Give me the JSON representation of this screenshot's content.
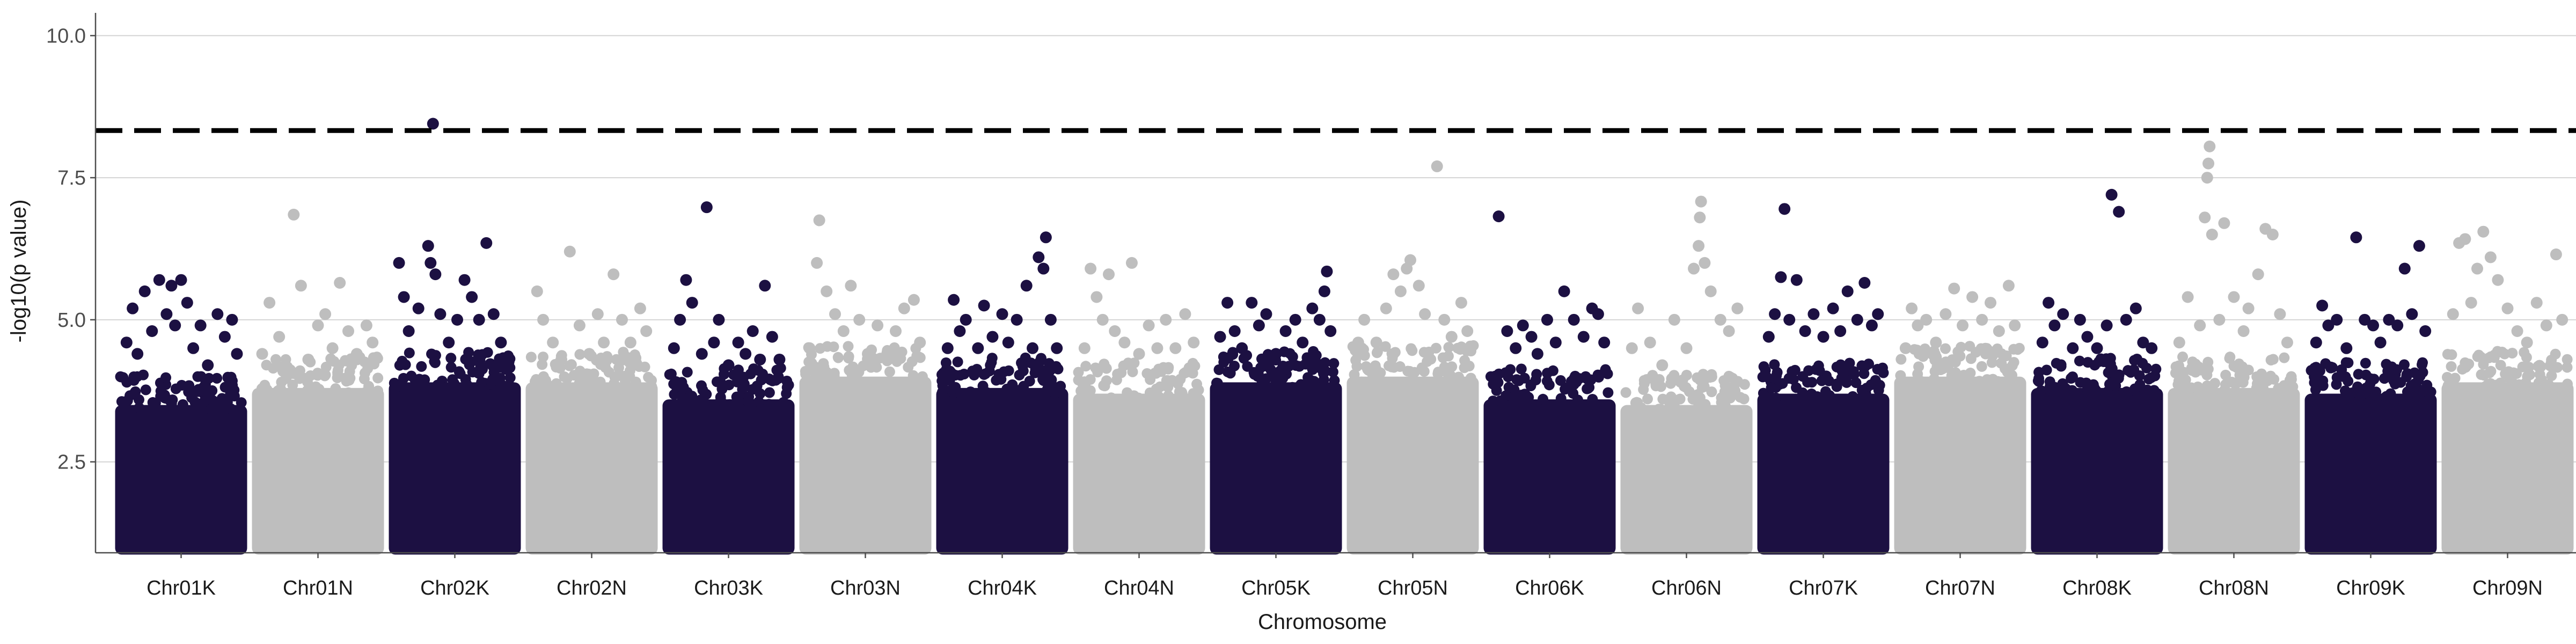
{
  "chart_data": {
    "type": "scatter",
    "subtype": "manhattan",
    "title": "",
    "xlabel": "Chromosome",
    "ylabel": "-log10(p value)",
    "ylim": [
      0.9,
      10.4
    ],
    "y_ticks": [
      2.5,
      5.0,
      7.5,
      10.0
    ],
    "y_tick_labels": [
      "2.5",
      "5.0",
      "7.5",
      "10.0"
    ],
    "threshold": 8.33,
    "threshold_style": "dashed",
    "grid": "horizontal major",
    "legend": "none",
    "colors": {
      "odd": "#1c1042",
      "even": "#bebebe",
      "threshold": "#000000",
      "grid": "#d4d4d4",
      "axis": "#4d4d4d"
    },
    "categories": [
      "Chr01K",
      "Chr01N",
      "Chr02K",
      "Chr02N",
      "Chr03K",
      "Chr03N",
      "Chr04K",
      "Chr04N",
      "Chr05K",
      "Chr05N",
      "Chr06K",
      "Chr06N",
      "Chr07K",
      "Chr07N",
      "Chr08K",
      "Chr08N",
      "Chr09K",
      "Chr09N"
    ],
    "series": [
      {
        "chromosome": "Chr01K",
        "dense_max": 3.5,
        "points": [
          [
            0.05,
            4.6
          ],
          [
            0.1,
            5.2
          ],
          [
            0.14,
            4.4
          ],
          [
            0.2,
            5.5
          ],
          [
            0.26,
            4.8
          ],
          [
            0.32,
            5.7
          ],
          [
            0.38,
            5.1
          ],
          [
            0.42,
            5.6
          ],
          [
            0.45,
            4.9
          ],
          [
            0.5,
            5.7
          ],
          [
            0.55,
            5.3
          ],
          [
            0.6,
            4.5
          ],
          [
            0.66,
            4.9
          ],
          [
            0.72,
            4.2
          ],
          [
            0.8,
            5.1
          ],
          [
            0.86,
            4.7
          ],
          [
            0.92,
            5.0
          ],
          [
            0.96,
            4.4
          ]
        ]
      },
      {
        "chromosome": "Chr01N",
        "dense_max": 3.8,
        "points": [
          [
            0.04,
            4.4
          ],
          [
            0.1,
            5.3
          ],
          [
            0.18,
            4.7
          ],
          [
            0.24,
            4.1
          ],
          [
            0.3,
            6.85
          ],
          [
            0.36,
            5.6
          ],
          [
            0.42,
            4.3
          ],
          [
            0.5,
            4.9
          ],
          [
            0.56,
            5.1
          ],
          [
            0.62,
            4.5
          ],
          [
            0.68,
            5.65
          ],
          [
            0.75,
            4.8
          ],
          [
            0.82,
            4.4
          ],
          [
            0.9,
            4.9
          ],
          [
            0.95,
            4.6
          ]
        ]
      },
      {
        "chromosome": "Chr02K",
        "dense_max": 3.9,
        "points": [
          [
            0.04,
            6.0
          ],
          [
            0.08,
            5.4
          ],
          [
            0.12,
            4.8
          ],
          [
            0.2,
            5.2
          ],
          [
            0.28,
            6.3
          ],
          [
            0.3,
            6.0
          ],
          [
            0.32,
            8.45
          ],
          [
            0.34,
            5.8
          ],
          [
            0.38,
            5.1
          ],
          [
            0.45,
            4.6
          ],
          [
            0.52,
            5.0
          ],
          [
            0.58,
            5.7
          ],
          [
            0.64,
            5.4
          ],
          [
            0.7,
            5.0
          ],
          [
            0.76,
            6.35
          ],
          [
            0.82,
            5.1
          ],
          [
            0.88,
            4.6
          ],
          [
            0.94,
            4.2
          ]
        ]
      },
      {
        "chromosome": "Chr02N",
        "dense_max": 3.9,
        "points": [
          [
            0.05,
            5.5
          ],
          [
            0.1,
            5.0
          ],
          [
            0.18,
            4.6
          ],
          [
            0.25,
            4.3
          ],
          [
            0.32,
            6.2
          ],
          [
            0.4,
            4.9
          ],
          [
            0.48,
            4.4
          ],
          [
            0.55,
            5.1
          ],
          [
            0.6,
            4.6
          ],
          [
            0.68,
            5.8
          ],
          [
            0.75,
            5.0
          ],
          [
            0.82,
            4.6
          ],
          [
            0.9,
            5.2
          ],
          [
            0.95,
            4.8
          ]
        ]
      },
      {
        "chromosome": "Chr03K",
        "dense_max": 3.6,
        "points": [
          [
            0.05,
            4.5
          ],
          [
            0.1,
            5.0
          ],
          [
            0.15,
            5.7
          ],
          [
            0.2,
            5.3
          ],
          [
            0.28,
            4.4
          ],
          [
            0.32,
            6.98
          ],
          [
            0.38,
            4.6
          ],
          [
            0.42,
            5.0
          ],
          [
            0.5,
            4.2
          ],
          [
            0.58,
            4.6
          ],
          [
            0.64,
            4.4
          ],
          [
            0.7,
            4.8
          ],
          [
            0.76,
            4.3
          ],
          [
            0.8,
            5.6
          ],
          [
            0.86,
            4.7
          ],
          [
            0.92,
            4.3
          ]
        ]
      },
      {
        "chromosome": "Chr03N",
        "dense_max": 4.0,
        "points": [
          [
            0.04,
            4.5
          ],
          [
            0.1,
            6.0
          ],
          [
            0.12,
            6.75
          ],
          [
            0.18,
            5.5
          ],
          [
            0.25,
            5.1
          ],
          [
            0.32,
            4.8
          ],
          [
            0.38,
            5.6
          ],
          [
            0.45,
            5.0
          ],
          [
            0.52,
            4.4
          ],
          [
            0.6,
            4.9
          ],
          [
            0.68,
            4.4
          ],
          [
            0.75,
            4.8
          ],
          [
            0.82,
            5.2
          ],
          [
            0.9,
            5.35
          ],
          [
            0.95,
            4.6
          ]
        ]
      },
      {
        "chromosome": "Chr04K",
        "dense_max": 3.8,
        "points": [
          [
            0.05,
            4.5
          ],
          [
            0.1,
            5.35
          ],
          [
            0.15,
            4.8
          ],
          [
            0.2,
            5.0
          ],
          [
            0.3,
            4.5
          ],
          [
            0.35,
            5.25
          ],
          [
            0.42,
            4.7
          ],
          [
            0.5,
            5.1
          ],
          [
            0.55,
            4.6
          ],
          [
            0.62,
            5.0
          ],
          [
            0.7,
            5.6
          ],
          [
            0.75,
            4.5
          ],
          [
            0.8,
            6.1
          ],
          [
            0.84,
            5.9
          ],
          [
            0.86,
            6.45
          ],
          [
            0.9,
            5.0
          ],
          [
            0.95,
            4.5
          ]
        ]
      },
      {
        "chromosome": "Chr04N",
        "dense_max": 3.7,
        "points": [
          [
            0.05,
            4.5
          ],
          [
            0.1,
            5.9
          ],
          [
            0.15,
            5.4
          ],
          [
            0.2,
            5.0
          ],
          [
            0.25,
            5.8
          ],
          [
            0.3,
            4.8
          ],
          [
            0.38,
            4.6
          ],
          [
            0.44,
            6.0
          ],
          [
            0.5,
            4.4
          ],
          [
            0.58,
            4.9
          ],
          [
            0.65,
            4.5
          ],
          [
            0.72,
            5.0
          ],
          [
            0.8,
            4.5
          ],
          [
            0.88,
            5.1
          ],
          [
            0.95,
            4.6
          ]
        ]
      },
      {
        "chromosome": "Chr05K",
        "dense_max": 3.9,
        "points": [
          [
            0.04,
            4.7
          ],
          [
            0.1,
            5.3
          ],
          [
            0.16,
            4.8
          ],
          [
            0.22,
            4.5
          ],
          [
            0.3,
            5.3
          ],
          [
            0.36,
            4.9
          ],
          [
            0.42,
            5.1
          ],
          [
            0.5,
            4.4
          ],
          [
            0.58,
            4.8
          ],
          [
            0.66,
            5.0
          ],
          [
            0.72,
            4.6
          ],
          [
            0.8,
            5.2
          ],
          [
            0.86,
            5.0
          ],
          [
            0.9,
            5.5
          ],
          [
            0.92,
            5.85
          ],
          [
            0.95,
            4.8
          ]
        ]
      },
      {
        "chromosome": "Chr05N",
        "dense_max": 4.0,
        "points": [
          [
            0.05,
            4.6
          ],
          [
            0.1,
            5.0
          ],
          [
            0.2,
            4.6
          ],
          [
            0.28,
            5.2
          ],
          [
            0.34,
            5.8
          ],
          [
            0.4,
            5.5
          ],
          [
            0.45,
            5.9
          ],
          [
            0.48,
            6.05
          ],
          [
            0.55,
            5.6
          ],
          [
            0.6,
            5.1
          ],
          [
            0.7,
            7.7
          ],
          [
            0.76,
            5.0
          ],
          [
            0.82,
            4.7
          ],
          [
            0.9,
            5.3
          ],
          [
            0.95,
            4.8
          ]
        ]
      },
      {
        "chromosome": "Chr06K",
        "dense_max": 3.6,
        "points": [
          [
            0.08,
            6.82
          ],
          [
            0.15,
            4.8
          ],
          [
            0.22,
            4.5
          ],
          [
            0.28,
            4.9
          ],
          [
            0.35,
            4.7
          ],
          [
            0.4,
            4.4
          ],
          [
            0.48,
            5.0
          ],
          [
            0.55,
            4.6
          ],
          [
            0.62,
            5.5
          ],
          [
            0.7,
            5.0
          ],
          [
            0.78,
            4.7
          ],
          [
            0.85,
            5.2
          ],
          [
            0.9,
            5.1
          ],
          [
            0.95,
            4.6
          ]
        ]
      },
      {
        "chromosome": "Chr06N",
        "dense_max": 3.5,
        "points": [
          [
            0.05,
            4.5
          ],
          [
            0.1,
            5.2
          ],
          [
            0.2,
            4.6
          ],
          [
            0.3,
            4.2
          ],
          [
            0.4,
            5.0
          ],
          [
            0.5,
            4.5
          ],
          [
            0.56,
            5.9
          ],
          [
            0.6,
            6.3
          ],
          [
            0.61,
            6.8
          ],
          [
            0.62,
            7.08
          ],
          [
            0.65,
            6.0
          ],
          [
            0.7,
            5.5
          ],
          [
            0.78,
            5.0
          ],
          [
            0.85,
            4.8
          ],
          [
            0.92,
            5.2
          ]
        ]
      },
      {
        "chromosome": "Chr07K",
        "dense_max": 3.7,
        "points": [
          [
            0.05,
            4.7
          ],
          [
            0.1,
            5.1
          ],
          [
            0.15,
            5.75
          ],
          [
            0.18,
            6.95
          ],
          [
            0.22,
            5.0
          ],
          [
            0.28,
            5.7
          ],
          [
            0.35,
            4.8
          ],
          [
            0.42,
            5.1
          ],
          [
            0.5,
            4.7
          ],
          [
            0.58,
            5.2
          ],
          [
            0.64,
            4.8
          ],
          [
            0.7,
            5.5
          ],
          [
            0.78,
            5.0
          ],
          [
            0.84,
            5.65
          ],
          [
            0.9,
            4.9
          ],
          [
            0.95,
            5.1
          ]
        ]
      },
      {
        "chromosome": "Chr07N",
        "dense_max": 4.0,
        "points": [
          [
            0.05,
            4.5
          ],
          [
            0.1,
            5.2
          ],
          [
            0.15,
            4.9
          ],
          [
            0.22,
            5.0
          ],
          [
            0.3,
            4.6
          ],
          [
            0.38,
            5.1
          ],
          [
            0.45,
            5.55
          ],
          [
            0.52,
            4.9
          ],
          [
            0.6,
            5.4
          ],
          [
            0.68,
            5.0
          ],
          [
            0.75,
            5.3
          ],
          [
            0.82,
            4.8
          ],
          [
            0.9,
            5.6
          ],
          [
            0.95,
            4.9
          ]
        ]
      },
      {
        "chromosome": "Chr08K",
        "dense_max": 3.8,
        "points": [
          [
            0.05,
            4.6
          ],
          [
            0.1,
            5.3
          ],
          [
            0.15,
            4.9
          ],
          [
            0.22,
            5.1
          ],
          [
            0.3,
            4.5
          ],
          [
            0.36,
            5.0
          ],
          [
            0.42,
            4.7
          ],
          [
            0.5,
            4.5
          ],
          [
            0.58,
            4.9
          ],
          [
            0.62,
            7.2
          ],
          [
            0.68,
            6.9
          ],
          [
            0.74,
            5.0
          ],
          [
            0.82,
            5.2
          ],
          [
            0.88,
            4.6
          ],
          [
            0.95,
            4.5
          ]
        ]
      },
      {
        "chromosome": "Chr08N",
        "dense_max": 3.8,
        "points": [
          [
            0.05,
            4.6
          ],
          [
            0.12,
            5.4
          ],
          [
            0.22,
            4.9
          ],
          [
            0.26,
            6.8
          ],
          [
            0.28,
            7.5
          ],
          [
            0.29,
            7.75
          ],
          [
            0.3,
            8.05
          ],
          [
            0.32,
            6.5
          ],
          [
            0.38,
            5.0
          ],
          [
            0.42,
            6.7
          ],
          [
            0.5,
            5.4
          ],
          [
            0.58,
            4.8
          ],
          [
            0.62,
            5.2
          ],
          [
            0.7,
            5.8
          ],
          [
            0.76,
            6.6
          ],
          [
            0.82,
            6.5
          ],
          [
            0.88,
            5.1
          ],
          [
            0.94,
            4.6
          ]
        ]
      },
      {
        "chromosome": "Chr09K",
        "dense_max": 3.7,
        "points": [
          [
            0.05,
            4.6
          ],
          [
            0.1,
            5.25
          ],
          [
            0.15,
            4.9
          ],
          [
            0.22,
            5.0
          ],
          [
            0.3,
            4.5
          ],
          [
            0.38,
            6.45
          ],
          [
            0.45,
            5.0
          ],
          [
            0.52,
            4.9
          ],
          [
            0.58,
            4.6
          ],
          [
            0.65,
            5.0
          ],
          [
            0.72,
            4.9
          ],
          [
            0.78,
            5.9
          ],
          [
            0.84,
            5.1
          ],
          [
            0.9,
            6.3
          ],
          [
            0.95,
            4.8
          ]
        ]
      },
      {
        "chromosome": "Chr09N",
        "dense_max": 3.9,
        "points": [
          [
            0.05,
            5.1
          ],
          [
            0.1,
            6.35
          ],
          [
            0.15,
            6.42
          ],
          [
            0.2,
            5.3
          ],
          [
            0.25,
            5.9
          ],
          [
            0.3,
            6.55
          ],
          [
            0.36,
            6.1
          ],
          [
            0.42,
            5.7
          ],
          [
            0.5,
            5.2
          ],
          [
            0.58,
            4.8
          ],
          [
            0.66,
            4.6
          ],
          [
            0.74,
            5.3
          ],
          [
            0.82,
            4.9
          ],
          [
            0.9,
            6.15
          ],
          [
            0.95,
            5.0
          ]
        ]
      }
    ]
  }
}
